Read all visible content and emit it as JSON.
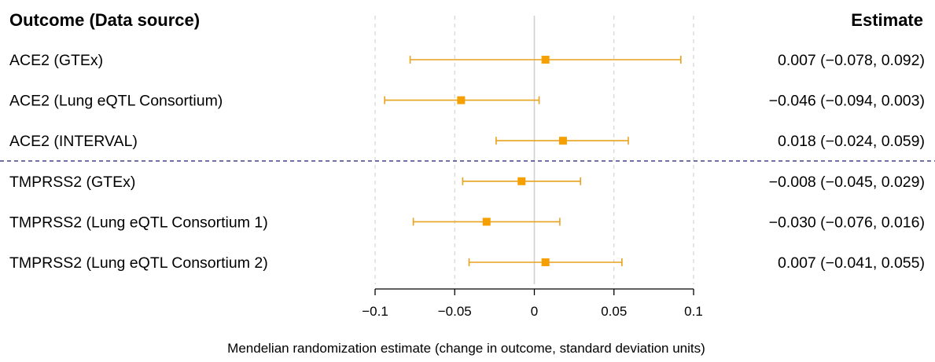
{
  "chart_data": {
    "type": "forest",
    "title": "",
    "left_header": "Outcome (Data source)",
    "right_header": "Estimate",
    "xlabel": "Mendelian randomization estimate (change in outcome, standard deviation units)",
    "xlim": [
      -0.1,
      0.1
    ],
    "xticks": [
      -0.1,
      -0.05,
      0,
      0.05,
      0.1
    ],
    "xtick_labels": [
      "−0.1",
      "−0.05",
      "0",
      "0.05",
      "0.1"
    ],
    "grid": "dashed vertical at ticks",
    "reference_line": 0,
    "separator_after_row": 3,
    "rows": [
      {
        "label": "ACE2 (GTEx)",
        "estimate": 0.007,
        "lower": -0.078,
        "upper": 0.092,
        "text": "0.007 (−0.078, 0.092)"
      },
      {
        "label": "ACE2 (Lung eQTL Consortium)",
        "estimate": -0.046,
        "lower": -0.094,
        "upper": 0.003,
        "text": "−0.046 (−0.094, 0.003)"
      },
      {
        "label": "ACE2 (INTERVAL)",
        "estimate": 0.018,
        "lower": -0.024,
        "upper": 0.059,
        "text": "0.018 (−0.024, 0.059)"
      },
      {
        "label": "TMPRSS2 (GTEx)",
        "estimate": -0.008,
        "lower": -0.045,
        "upper": 0.029,
        "text": "−0.008 (−0.045, 0.029)"
      },
      {
        "label": "TMPRSS2 (Lung eQTL Consortium 1)",
        "estimate": -0.03,
        "lower": -0.076,
        "upper": 0.016,
        "text": "−0.030 (−0.076, 0.016)"
      },
      {
        "label": "TMPRSS2 (Lung eQTL Consortium 2)",
        "estimate": 0.007,
        "lower": -0.041,
        "upper": 0.055,
        "text": "0.007 (−0.041, 0.055)"
      }
    ],
    "colors": {
      "marker": "#f5a000",
      "ci_line": "#e8a21c",
      "grid": "#d4d4d4",
      "zero_line": "#d0d0d0",
      "separator": "#1a1a6e",
      "axis": "#000000"
    }
  }
}
